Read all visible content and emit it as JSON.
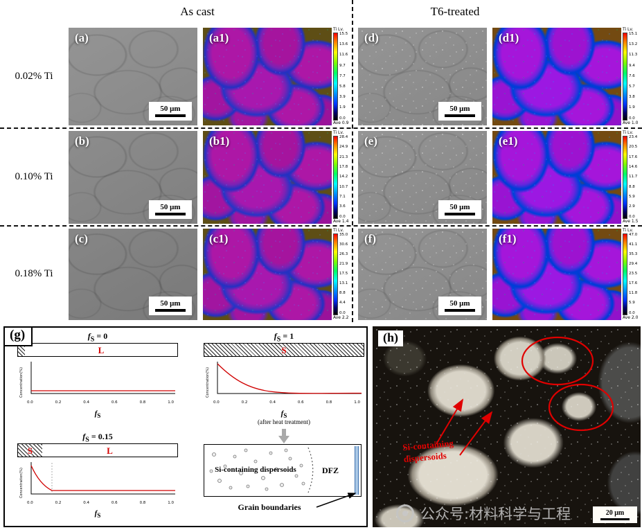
{
  "header": {
    "as_cast": "As cast",
    "t6": "T6-treated"
  },
  "scale_bar": "50 μm",
  "cbar_title": "Ti Lv.",
  "rows": [
    {
      "label": "0.02% Ti",
      "cast": {
        "gray": "(a)",
        "color": "(a1)",
        "cbar": {
          "ticks": [
            "15.5",
            "13.6",
            "11.6",
            "9.7",
            "7.7",
            "5.8",
            "3.9",
            "1.9",
            "0.0"
          ],
          "ave": "Ave 0.9"
        }
      },
      "t6": {
        "gray": "(d)",
        "color": "(d1)",
        "cbar": {
          "ticks": [
            "15.1",
            "13.2",
            "11.3",
            "9.4",
            "7.6",
            "5.7",
            "3.8",
            "1.9",
            "0.0"
          ],
          "ave": "Ave 1.0"
        }
      }
    },
    {
      "label": "0.10% Ti",
      "cast": {
        "gray": "(b)",
        "color": "(b1)",
        "cbar": {
          "ticks": [
            "28.4",
            "24.9",
            "21.3",
            "17.8",
            "14.2",
            "10.7",
            "7.1",
            "3.6",
            "0.0"
          ],
          "ave": "Ave 1.4"
        }
      },
      "t6": {
        "gray": "(e)",
        "color": "(e1)",
        "cbar": {
          "ticks": [
            "23.4",
            "20.5",
            "17.6",
            "14.6",
            "11.7",
            "8.8",
            "5.9",
            "2.9",
            "0.0"
          ],
          "ave": "Ave 1.5"
        }
      }
    },
    {
      "label": "0.18% Ti",
      "cast": {
        "gray": "(c)",
        "color": "(c1)",
        "cbar": {
          "ticks": [
            "35.0",
            "30.6",
            "26.3",
            "21.9",
            "17.5",
            "13.1",
            "8.8",
            "4.4",
            "0.0"
          ],
          "ave": "Ave 2.2"
        }
      },
      "t6": {
        "gray": "(f)",
        "color": "(f1)",
        "cbar": {
          "ticks": [
            "47.0",
            "41.1",
            "35.3",
            "29.4",
            "23.5",
            "17.6",
            "11.8",
            "5.9",
            "0.0"
          ],
          "ave": "Ave 2.0"
        }
      }
    }
  ],
  "g": {
    "label": "(g)",
    "ylabel": "Concentration(%)",
    "xticks": [
      "0.0",
      "0.2",
      "0.4",
      "0.6",
      "0.8",
      "1.0"
    ],
    "fvar": "f",
    "fsub": "S",
    "eq0": " = 0",
    "eq1": " = 1",
    "eq015": " = 0.15",
    "liquid": "L",
    "solid": "S",
    "after": "(after heat treatment)",
    "dispersoids": "Si-containing dispersoids",
    "dfz": "DFZ",
    "grain_boundaries": "Grain boundaries"
  },
  "h": {
    "label": "(h)",
    "note_line1": "Si-containing",
    "note_line2": "dispersoids",
    "scale_bar": "20 μm"
  },
  "watermark": "公众号:材料科学与工程"
}
